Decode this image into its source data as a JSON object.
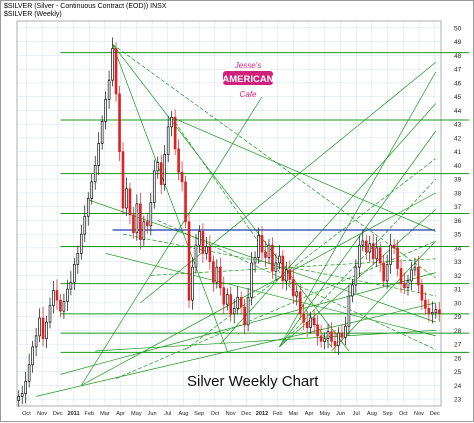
{
  "header": {
    "line1": "$SILVER (Silver - Continuous Contract (EOD)) INSX",
    "line2": "$SILVER (Weekly)"
  },
  "logo": {
    "top": "Jesse's",
    "middle": "AMERICAN",
    "bottom": "Cafe"
  },
  "caption": "Silver Weekly Chart",
  "colors": {
    "up_bar": "#111111",
    "down_bar": "#e02020",
    "fan_lines": "#1a9a1a",
    "resistance_line": "#1f3fa8",
    "grid": "#c8d8e8",
    "logo": "#d1207a"
  },
  "chart_data": {
    "type": "candlestick",
    "title": "Silver Weekly Chart",
    "symbol": "$SILVER",
    "interval": "Weekly",
    "y_axis_side": "right",
    "ylim": [
      22.5,
      50.5
    ],
    "y_ticks": [
      23,
      24,
      25,
      26,
      27,
      28,
      29,
      30,
      31,
      32,
      33,
      34,
      35,
      36,
      37,
      38,
      39,
      40,
      41,
      42,
      43,
      44,
      45,
      46,
      47,
      48,
      49,
      50
    ],
    "x_tick_labels": [
      "Oct",
      "Nov",
      "Dec",
      "2011",
      "Feb",
      "Mar",
      "Apr",
      "May",
      "Jun",
      "Jul",
      "Aug",
      "Sep",
      "Oct",
      "Nov",
      "Dec",
      "2012",
      "Feb",
      "Mar",
      "Apr",
      "May",
      "Jun",
      "Jul",
      "Aug",
      "Sep",
      "Oct",
      "Nov",
      "Dec"
    ],
    "closes": [
      23.2,
      23.4,
      24.3,
      25.5,
      26.8,
      27.6,
      28.9,
      27.4,
      28.6,
      29.8,
      30.9,
      30.2,
      29.4,
      30.1,
      31.0,
      31.5,
      32.8,
      33.6,
      35.0,
      36.3,
      37.6,
      38.8,
      40.0,
      41.6,
      43.2,
      44.8,
      46.2,
      48.5,
      45.2,
      41.0,
      36.9,
      38.3,
      36.4,
      35.1,
      37.2,
      34.6,
      35.9,
      35.6,
      37.3,
      39.6,
      40.2,
      38.6,
      40.8,
      42.8,
      43.5,
      41.2,
      39.5,
      38.8,
      35.9,
      30.2,
      32.6,
      34.2,
      35.2,
      33.6,
      34.1,
      33.0,
      31.5,
      32.6,
      31.1,
      29.9,
      30.6,
      29.2,
      29.6,
      30.4,
      29.7,
      28.4,
      30.4,
      32.9,
      33.3,
      34.9,
      33.7,
      33.3,
      34.2,
      32.3,
      32.9,
      33.4,
      31.6,
      32.4,
      31.7,
      30.5,
      30.8,
      29.2,
      28.6,
      28.2,
      28.9,
      28.4,
      27.6,
      27.2,
      27.4,
      27.9,
      27.2,
      26.9,
      27.8,
      27.5,
      28.3,
      30.5,
      31.3,
      32.6,
      34.2,
      34.5,
      33.7,
      34.3,
      33.2,
      34.0,
      32.9,
      31.6,
      32.8,
      34.2,
      34.0,
      32.5,
      31.4,
      31.1,
      31.6,
      32.4,
      32.6,
      31.3,
      30.2,
      29.6,
      29.2,
      29.3,
      29.5,
      29.2
    ],
    "resistance_level": 35.3,
    "horizontal_levels": [
      48.2,
      43.3,
      39.4,
      36.5,
      34.1,
      31.4,
      29.2,
      27.8,
      26.4
    ],
    "fan_lines": [
      {
        "start": [
          18,
          24.0
        ],
        "end": [
          70,
          45.0
        ]
      },
      {
        "start": [
          18,
          24.0
        ],
        "end": [
          120,
          38.0
        ]
      },
      {
        "start": [
          28,
          24.5
        ],
        "end": [
          120,
          34.5
        ]
      },
      {
        "start": [
          5,
          23.2
        ],
        "end": [
          120,
          30.0
        ]
      },
      {
        "start": [
          27,
          48.8
        ],
        "end": [
          60,
          26.5
        ]
      },
      {
        "start": [
          27,
          48.8
        ],
        "end": [
          120,
          31.8
        ]
      },
      {
        "start": [
          27,
          48.8
        ],
        "end": [
          95,
          26.5
        ]
      },
      {
        "start": [
          44,
          43.5
        ],
        "end": [
          120,
          35.2
        ]
      },
      {
        "start": [
          44,
          43.5
        ],
        "end": [
          90,
          26.8
        ]
      },
      {
        "start": [
          20,
          37.5
        ],
        "end": [
          120,
          28.6
        ]
      },
      {
        "start": [
          25,
          33.6
        ],
        "end": [
          120,
          27.6
        ]
      },
      {
        "start": [
          30,
          35.0
        ],
        "end": [
          120,
          30.5
        ]
      },
      {
        "start": [
          75,
          26.8
        ],
        "end": [
          120,
          46.8
        ]
      },
      {
        "start": [
          75,
          26.8
        ],
        "end": [
          120,
          42.5
        ]
      },
      {
        "start": [
          75,
          26.8
        ],
        "end": [
          120,
          39.0
        ]
      },
      {
        "start": [
          75,
          26.8
        ],
        "end": [
          120,
          36.8
        ]
      },
      {
        "start": [
          90,
          26.5
        ],
        "end": [
          120,
          34.5
        ]
      },
      {
        "start": [
          48,
          26.6
        ],
        "end": [
          120,
          40.5
        ]
      },
      {
        "start": [
          58,
          27.0
        ],
        "end": [
          120,
          44.5
        ]
      },
      {
        "start": [
          35,
          30.0
        ],
        "end": [
          120,
          47.5
        ]
      },
      {
        "start": [
          38,
          32.0
        ],
        "end": [
          120,
          33.2
        ]
      },
      {
        "start": [
          12,
          24.8
        ],
        "end": [
          120,
          32.2
        ]
      },
      {
        "start": [
          22,
          26.5
        ],
        "end": [
          120,
          28.0
        ]
      },
      {
        "start": [
          40,
          36.0
        ],
        "end": [
          120,
          26.6
        ]
      }
    ]
  }
}
